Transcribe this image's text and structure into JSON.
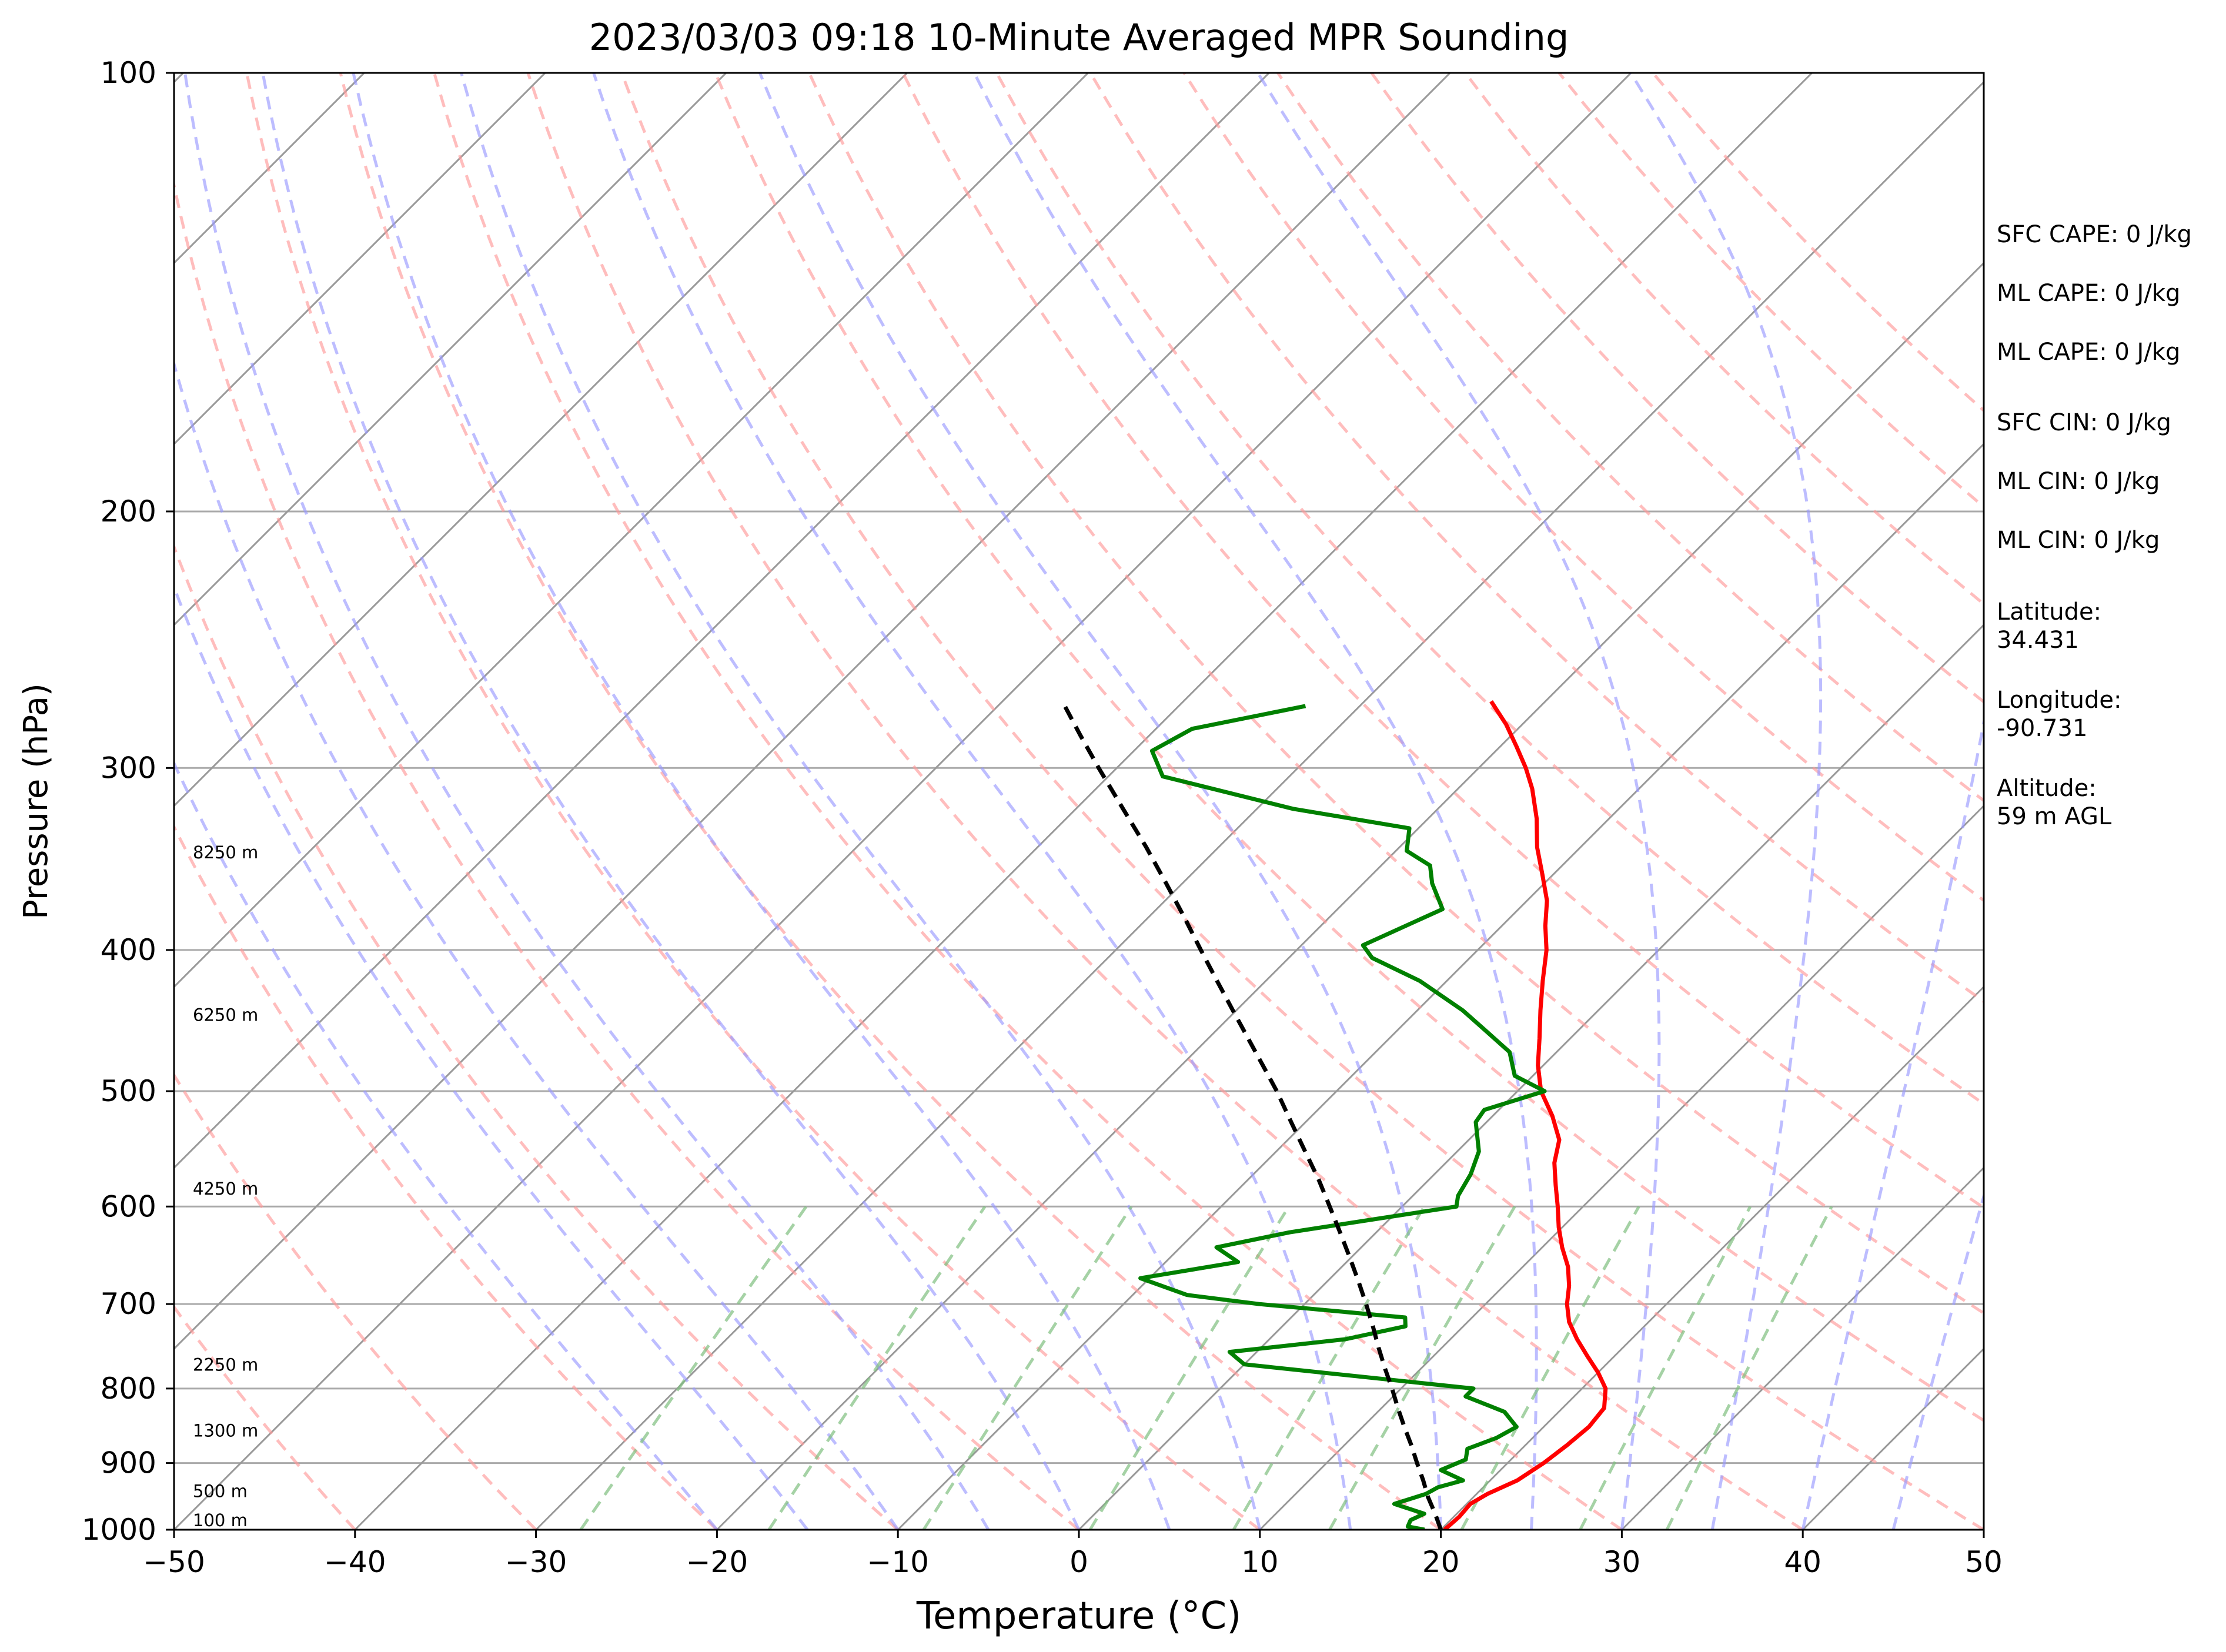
{
  "chart_data": {
    "type": "line",
    "subtype": "skew-t log-p sounding",
    "title": "2023/03/03 09:18 10-Minute Averaged MPR Sounding",
    "xlabel": "Temperature (°C)",
    "ylabel": "Pressure (hPa)",
    "xlim": [
      -50,
      50
    ],
    "ylim": [
      1000,
      100
    ],
    "y_scale": "log",
    "x_ticks": [
      -50,
      -40,
      -30,
      -20,
      -10,
      0,
      10,
      20,
      30,
      40,
      50
    ],
    "x_tick_labels": [
      "−50",
      "−40",
      "−30",
      "−20",
      "−10",
      "0",
      "10",
      "20",
      "30",
      "40",
      "50"
    ],
    "y_ticks": [
      100,
      200,
      300,
      400,
      500,
      600,
      700,
      800,
      900,
      1000
    ],
    "y_tick_labels": [
      "100",
      "200",
      "300",
      "400",
      "500",
      "600",
      "700",
      "800",
      "900",
      "1000"
    ],
    "horizontal_grid_pressures": [
      200,
      300,
      400,
      500,
      600,
      700,
      800,
      900
    ],
    "isotherm_temps": [
      -160,
      -150,
      -140,
      -130,
      -120,
      -110,
      -100,
      -90,
      -80,
      -70,
      -60,
      -50,
      -40,
      -30,
      -20,
      -10,
      0,
      10,
      20,
      30,
      40,
      50
    ],
    "dry_adiabat_temps": [
      -40,
      -30,
      -20,
      -10,
      0,
      10,
      20,
      30,
      40,
      50,
      60,
      70,
      80,
      90,
      100,
      110,
      120,
      130,
      140,
      150,
      160
    ],
    "moist_adiabat_temps": [
      -20,
      -15,
      -10,
      -5,
      0,
      5,
      10,
      15,
      20,
      25,
      30,
      35,
      40,
      45
    ],
    "mixing_ratios": [
      0.4,
      1,
      2,
      4,
      7,
      10,
      16,
      24,
      32
    ],
    "height_labels": [
      {
        "p": 1000,
        "text": "100 m"
      },
      {
        "p": 955,
        "text": "500 m"
      },
      {
        "p": 868,
        "text": "1300 m"
      },
      {
        "p": 782,
        "text": "2250 m"
      },
      {
        "p": 592,
        "text": "4250 m"
      },
      {
        "p": 450,
        "text": "6250 m"
      },
      {
        "p": 348,
        "text": "8250 m"
      }
    ],
    "colors": {
      "temperature": "#ff0000",
      "dewpoint": "#008000",
      "parcel": "#000000",
      "isotherm": "#999999",
      "grid": "#aaaaaa",
      "dry_adiabat": "#ff9999",
      "moist_adiabat": "#9999ff",
      "mixing_ratio": "#7fbf7f"
    },
    "series": [
      {
        "key": "temperature",
        "color": "#ff0000",
        "points": [
          [
            1000,
            20.2
          ],
          [
            980,
            20.3
          ],
          [
            960,
            20.2
          ],
          [
            945,
            20.6
          ],
          [
            925,
            21.5
          ],
          [
            900,
            22.0
          ],
          [
            875,
            22.3
          ],
          [
            850,
            22.5
          ],
          [
            825,
            22.3
          ],
          [
            800,
            21.3
          ],
          [
            780,
            20.0
          ],
          [
            760,
            18.5
          ],
          [
            740,
            17.0
          ],
          [
            720,
            15.6
          ],
          [
            700,
            14.5
          ],
          [
            680,
            13.6
          ],
          [
            660,
            12.5
          ],
          [
            640,
            11.1
          ],
          [
            620,
            9.8
          ],
          [
            600,
            8.6
          ],
          [
            580,
            7.3
          ],
          [
            560,
            6.0
          ],
          [
            540,
            5.0
          ],
          [
            520,
            3.3
          ],
          [
            500,
            1.3
          ],
          [
            480,
            -0.3
          ],
          [
            460,
            -1.7
          ],
          [
            440,
            -3.2
          ],
          [
            420,
            -4.7
          ],
          [
            400,
            -6.2
          ],
          [
            385,
            -7.6
          ],
          [
            370,
            -8.9
          ],
          [
            355,
            -10.6
          ],
          [
            340,
            -12.4
          ],
          [
            325,
            -14.0
          ],
          [
            310,
            -15.9
          ],
          [
            300,
            -17.4
          ],
          [
            290,
            -19.1
          ],
          [
            280,
            -20.9
          ],
          [
            270,
            -23.0
          ]
        ]
      },
      {
        "key": "dewpoint",
        "color": "#008000",
        "points": [
          [
            1000,
            19.1
          ],
          [
            995,
            18.0
          ],
          [
            985,
            17.8
          ],
          [
            975,
            18.2
          ],
          [
            960,
            16.0
          ],
          [
            945,
            17.2
          ],
          [
            935,
            17.5
          ],
          [
            925,
            18.5
          ],
          [
            910,
            16.7
          ],
          [
            895,
            17.5
          ],
          [
            880,
            17.0
          ],
          [
            865,
            18.0
          ],
          [
            850,
            18.5
          ],
          [
            830,
            17.0
          ],
          [
            810,
            14.0
          ],
          [
            800,
            14.0
          ],
          [
            770,
            0.0
          ],
          [
            755,
            -1.5
          ],
          [
            740,
            4.2
          ],
          [
            725,
            6.8
          ],
          [
            715,
            6.3
          ],
          [
            700,
            -2.5
          ],
          [
            690,
            -7.0
          ],
          [
            672,
            -10.5
          ],
          [
            655,
            -6.0
          ],
          [
            640,
            -8.0
          ],
          [
            625,
            -4.8
          ],
          [
            600,
            3.0
          ],
          [
            590,
            2.5
          ],
          [
            570,
            2.0
          ],
          [
            550,
            1.2
          ],
          [
            525,
            -0.6
          ],
          [
            515,
            -0.8
          ],
          [
            500,
            1.5
          ],
          [
            488,
            -1.0
          ],
          [
            470,
            -2.6
          ],
          [
            455,
            -5.0
          ],
          [
            440,
            -7.5
          ],
          [
            420,
            -11.5
          ],
          [
            405,
            -15.4
          ],
          [
            397,
            -16.6
          ],
          [
            375,
            -14.2
          ],
          [
            360,
            -16.2
          ],
          [
            350,
            -17.3
          ],
          [
            342,
            -19.4
          ],
          [
            330,
            -20.5
          ],
          [
            320,
            -28.0
          ],
          [
            304,
            -37.0
          ],
          [
            292,
            -39.0
          ],
          [
            282,
            -38.0
          ],
          [
            272,
            -33.0
          ]
        ]
      },
      {
        "key": "parcel",
        "color": "#000000",
        "points": [
          [
            1000,
            20.0
          ],
          [
            975,
            18.8
          ],
          [
            950,
            17.5
          ],
          [
            925,
            16.3
          ],
          [
            900,
            15.0
          ],
          [
            875,
            13.7
          ],
          [
            850,
            12.3
          ],
          [
            825,
            10.9
          ],
          [
            800,
            9.5
          ],
          [
            775,
            8.0
          ],
          [
            750,
            6.5
          ],
          [
            725,
            5.0
          ],
          [
            700,
            3.4
          ],
          [
            675,
            1.7
          ],
          [
            650,
            -0.1
          ],
          [
            625,
            -2.0
          ],
          [
            600,
            -4.0
          ],
          [
            575,
            -6.1
          ],
          [
            550,
            -8.4
          ],
          [
            525,
            -10.8
          ],
          [
            500,
            -13.3
          ],
          [
            480,
            -15.5
          ],
          [
            460,
            -17.8
          ],
          [
            440,
            -20.2
          ],
          [
            420,
            -22.7
          ],
          [
            400,
            -25.3
          ],
          [
            380,
            -28.0
          ],
          [
            360,
            -30.9
          ],
          [
            340,
            -34.0
          ],
          [
            320,
            -37.4
          ],
          [
            300,
            -41.0
          ],
          [
            285,
            -43.8
          ],
          [
            272,
            -46.3
          ]
        ]
      }
    ],
    "annotations": [
      {
        "key": "sfc_cape",
        "text": "SFC CAPE: 0 J/kg"
      },
      {
        "key": "ml_cape_1",
        "text": "ML CAPE: 0 J/kg"
      },
      {
        "key": "ml_cape_2",
        "text": "ML CAPE: 0 J/kg"
      },
      {
        "key": "sfc_cin",
        "text": "SFC CIN: 0 J/kg"
      },
      {
        "key": "ml_cin_1",
        "text": "ML CIN: 0 J/kg"
      },
      {
        "key": "ml_cin_2",
        "text": "ML CIN: 0 J/kg"
      },
      {
        "key": "latitude",
        "text": "Latitude:\n34.431"
      },
      {
        "key": "longitude",
        "text": "Longitude:\n-90.731"
      },
      {
        "key": "altitude",
        "text": "Altitude:\n59 m AGL"
      }
    ]
  }
}
